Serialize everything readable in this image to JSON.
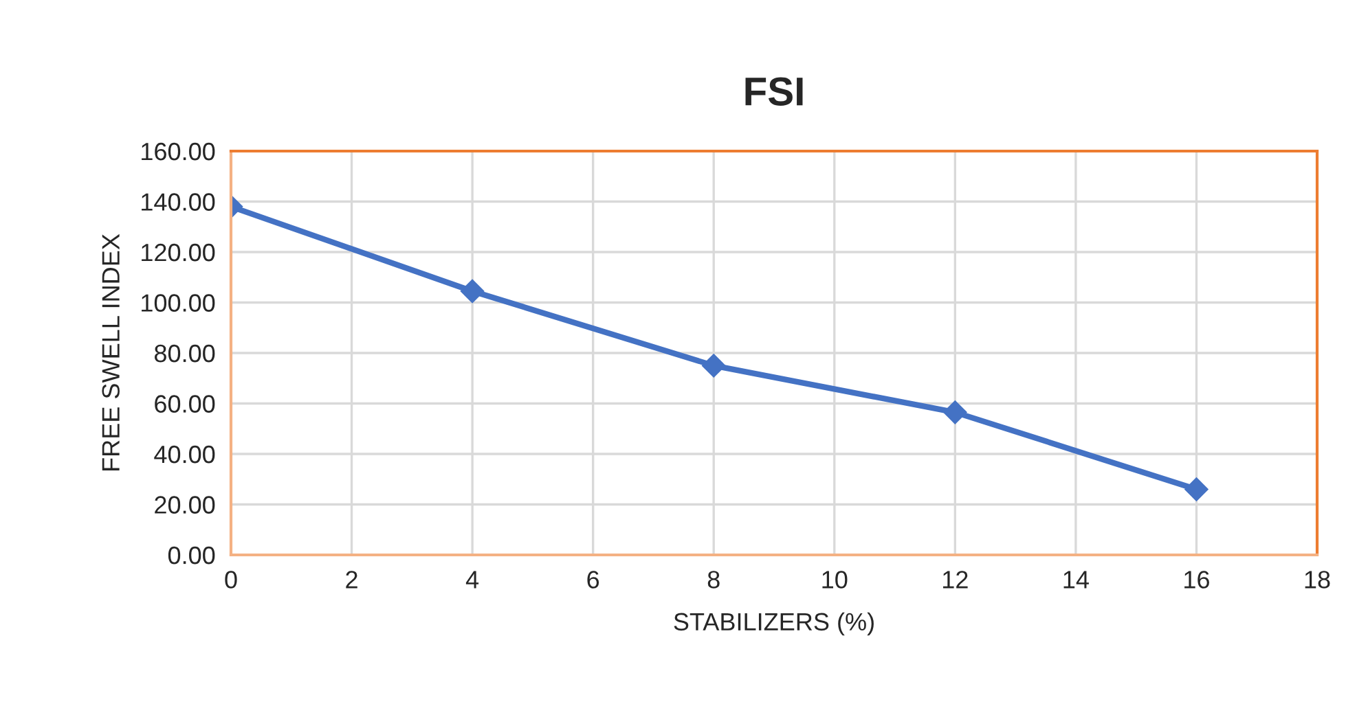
{
  "chart_data": {
    "type": "line",
    "title": "FSI",
    "xlabel": "STABILIZERS (%)",
    "ylabel": "FREE SWELL INDEX",
    "x": [
      0,
      4,
      8,
      12,
      16
    ],
    "series": [
      {
        "color": "#4472c4",
        "values": [
          138,
          104.5,
          75,
          56.5,
          26
        ]
      }
    ],
    "xlim": [
      0,
      18
    ],
    "xticks": [
      0,
      2,
      4,
      6,
      8,
      10,
      12,
      14,
      16,
      18
    ],
    "ylim": [
      0,
      160
    ],
    "yticks": [
      {
        "value": 0,
        "label": "0.00"
      },
      {
        "value": 20,
        "label": "20.00"
      },
      {
        "value": 40,
        "label": "40.00"
      },
      {
        "value": 60,
        "label": "60.00"
      },
      {
        "value": 80,
        "label": "80.00"
      },
      {
        "value": 100,
        "label": "100.00"
      },
      {
        "value": 120,
        "label": "120.00"
      },
      {
        "value": 140,
        "label": "140.00"
      },
      {
        "value": 160,
        "label": "160.00"
      }
    ],
    "grid": true,
    "marker": "diamond",
    "line_style": "solid"
  }
}
